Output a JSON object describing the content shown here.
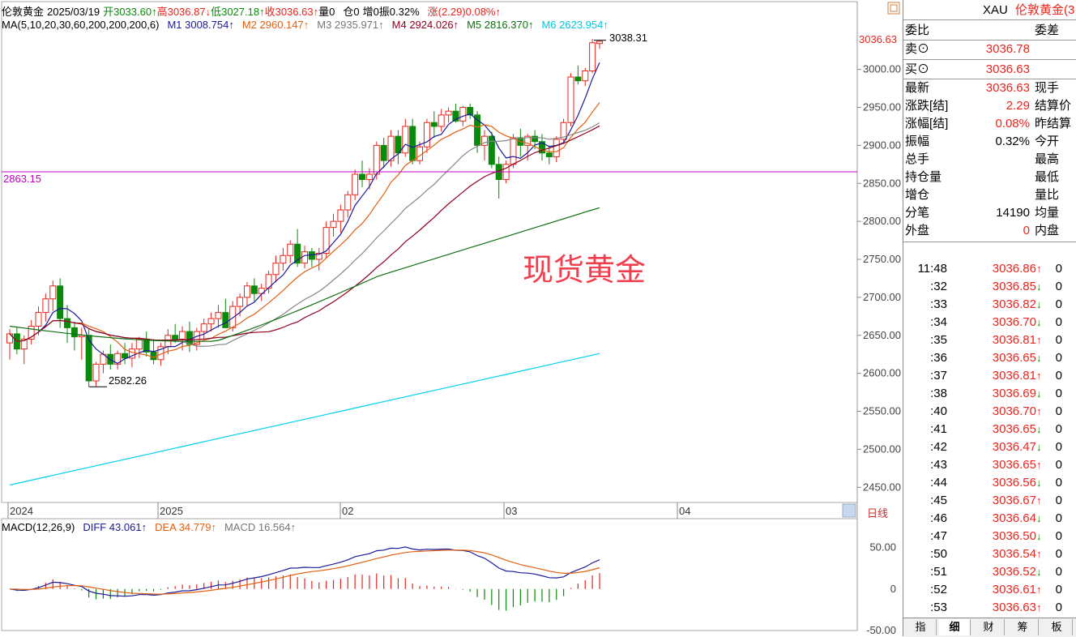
{
  "header": {
    "title": "伦敦黄金",
    "date": "2025/03/19",
    "open": "开3033.60↑",
    "high": "高3036.87↓",
    "low": "低3027.18↑",
    "close": "收3036.63↑",
    "volume": "量0",
    "position": "仓0",
    "increase": "增0",
    "amplitude": "振0.32%",
    "change": "涨(2.29)0.08%↑"
  },
  "ma_legend": {
    "label": "MA(5,10,20,30,60,200,200,200,6)",
    "m1": "M1 3008.754↑",
    "m2": "M2 2960.147↑",
    "m3": "M3 2935.971↑",
    "m4": "M4 2924.026↑",
    "m5": "M5 2816.370↑",
    "m6": "M6 2623.954↑"
  },
  "macd_legend": {
    "label": "MACD(12,26,9)",
    "diff": "DIFF 43.061↑",
    "dea": "DEA 34.779↑",
    "macd": "MACD 16.564↑"
  },
  "annotations": {
    "ref_line": "2863.15",
    "high_label": "3038.31",
    "low_label": "2582.26",
    "price_tag": "3036.63",
    "watermark": "现货黄金",
    "period": "日线"
  },
  "colors": {
    "up": "#e8251e",
    "down": "#0a8a0a",
    "m1": "#1a1a9a",
    "m2": "#e06010",
    "m3": "#888888",
    "m4": "#900020",
    "m5": "#107010",
    "m6": "#00d0f0",
    "ref": "#c000c0"
  },
  "chart_data": {
    "type": "candlestick",
    "ylim": [
      2430,
      3070
    ],
    "y_ticks": [
      "3000.00",
      "2950.00",
      "2900.00",
      "2850.00",
      "2800.00",
      "2750.00",
      "2700.00",
      "2650.00",
      "2600.00",
      "2550.00",
      "2500.00",
      "2450.00"
    ],
    "x_ticks": [
      "2024",
      "2025",
      "02",
      "03",
      "04"
    ],
    "macd_ylim": [
      -50,
      70
    ],
    "macd_ticks": [
      "50.00",
      "0",
      "-50.00"
    ],
    "candles": [
      [
        2640,
        2658,
        2618,
        2652
      ],
      [
        2652,
        2660,
        2625,
        2632
      ],
      [
        2632,
        2650,
        2612,
        2645
      ],
      [
        2645,
        2670,
        2638,
        2662
      ],
      [
        2662,
        2688,
        2650,
        2680
      ],
      [
        2680,
        2705,
        2668,
        2698
      ],
      [
        2698,
        2722,
        2682,
        2715
      ],
      [
        2715,
        2725,
        2660,
        2672
      ],
      [
        2672,
        2690,
        2640,
        2660
      ],
      [
        2660,
        2668,
        2630,
        2648
      ],
      [
        2648,
        2660,
        2618,
        2650
      ],
      [
        2650,
        2658,
        2582,
        2590
      ],
      [
        2590,
        2615,
        2582,
        2612
      ],
      [
        2612,
        2630,
        2600,
        2625
      ],
      [
        2625,
        2638,
        2605,
        2612
      ],
      [
        2612,
        2630,
        2605,
        2626
      ],
      [
        2626,
        2640,
        2612,
        2620
      ],
      [
        2620,
        2640,
        2608,
        2632
      ],
      [
        2632,
        2648,
        2620,
        2645
      ],
      [
        2645,
        2655,
        2622,
        2628
      ],
      [
        2628,
        2645,
        2612,
        2618
      ],
      [
        2618,
        2640,
        2610,
        2635
      ],
      [
        2635,
        2658,
        2625,
        2650
      ],
      [
        2650,
        2665,
        2640,
        2645
      ],
      [
        2645,
        2662,
        2630,
        2655
      ],
      [
        2655,
        2668,
        2628,
        2638
      ],
      [
        2638,
        2660,
        2630,
        2655
      ],
      [
        2655,
        2672,
        2645,
        2665
      ],
      [
        2665,
        2680,
        2655,
        2672
      ],
      [
        2672,
        2690,
        2660,
        2680
      ],
      [
        2680,
        2698,
        2665,
        2660
      ],
      [
        2660,
        2695,
        2655,
        2688
      ],
      [
        2688,
        2705,
        2675,
        2700
      ],
      [
        2700,
        2720,
        2688,
        2715
      ],
      [
        2715,
        2725,
        2695,
        2705
      ],
      [
        2705,
        2718,
        2695,
        2712
      ],
      [
        2712,
        2735,
        2705,
        2730
      ],
      [
        2730,
        2755,
        2720,
        2745
      ],
      [
        2745,
        2765,
        2735,
        2755
      ],
      [
        2755,
        2775,
        2745,
        2770
      ],
      [
        2770,
        2790,
        2740,
        2745
      ],
      [
        2745,
        2768,
        2738,
        2760
      ],
      [
        2760,
        2765,
        2740,
        2750
      ],
      [
        2750,
        2765,
        2735,
        2758
      ],
      [
        2758,
        2800,
        2752,
        2792
      ],
      [
        2792,
        2810,
        2780,
        2800
      ],
      [
        2800,
        2822,
        2785,
        2815
      ],
      [
        2815,
        2840,
        2805,
        2835
      ],
      [
        2835,
        2868,
        2828,
        2862
      ],
      [
        2862,
        2880,
        2845,
        2855
      ],
      [
        2855,
        2870,
        2842,
        2862
      ],
      [
        2862,
        2905,
        2855,
        2900
      ],
      [
        2900,
        2910,
        2870,
        2880
      ],
      [
        2880,
        2920,
        2872,
        2912
      ],
      [
        2912,
        2920,
        2875,
        2890
      ],
      [
        2890,
        2935,
        2885,
        2925
      ],
      [
        2925,
        2935,
        2875,
        2880
      ],
      [
        2880,
        2905,
        2875,
        2898
      ],
      [
        2898,
        2935,
        2890,
        2930
      ],
      [
        2930,
        2945,
        2910,
        2925
      ],
      [
        2925,
        2948,
        2918,
        2940
      ],
      [
        2940,
        2950,
        2930,
        2945
      ],
      [
        2945,
        2955,
        2930,
        2932
      ],
      [
        2932,
        2952,
        2925,
        2950
      ],
      [
        2950,
        2955,
        2935,
        2940
      ],
      [
        2940,
        2945,
        2890,
        2900
      ],
      [
        2900,
        2920,
        2880,
        2912
      ],
      [
        2912,
        2918,
        2870,
        2875
      ],
      [
        2875,
        2885,
        2830,
        2855
      ],
      [
        2855,
        2880,
        2850,
        2875
      ],
      [
        2875,
        2915,
        2870,
        2910
      ],
      [
        2910,
        2922,
        2885,
        2900
      ],
      [
        2900,
        2915,
        2880,
        2912
      ],
      [
        2912,
        2920,
        2895,
        2905
      ],
      [
        2905,
        2915,
        2880,
        2890
      ],
      [
        2890,
        2900,
        2875,
        2885
      ],
      [
        2885,
        2912,
        2878,
        2908
      ],
      [
        2908,
        2935,
        2902,
        2930
      ],
      [
        2930,
        2995,
        2925,
        2990
      ],
      [
        2990,
        3005,
        2980,
        2985
      ],
      [
        2985,
        3002,
        2978,
        2998
      ],
      [
        2998,
        3040,
        2995,
        3035
      ],
      [
        3034,
        3037,
        3027,
        3037
      ]
    ]
  }
}
